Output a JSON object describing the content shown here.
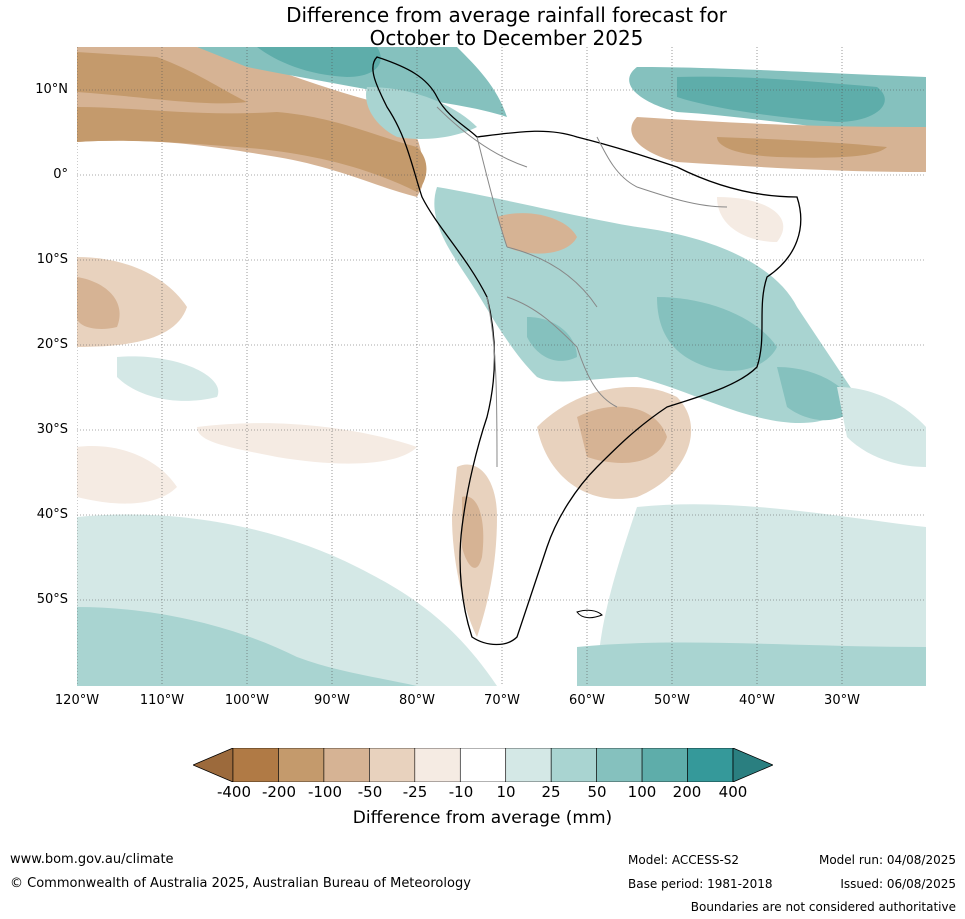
{
  "title": {
    "line1": "Difference from average rainfall forecast for",
    "line2": "October to December 2025"
  },
  "axes": {
    "lat_labels": [
      "10°N",
      "0°",
      "10°S",
      "20°S",
      "30°S",
      "40°S",
      "50°S"
    ],
    "lon_labels": [
      "120°W",
      "110°W",
      "100°W",
      "90°W",
      "80°W",
      "70°W",
      "60°W",
      "50°W",
      "40°W",
      "30°W"
    ]
  },
  "colorbar": {
    "title": "Difference from average (mm)",
    "ticks": [
      "-400",
      "-200",
      "-100",
      "-50",
      "-25",
      "-10",
      "10",
      "25",
      "50",
      "100",
      "200",
      "400"
    ],
    "colors": [
      "#9c6a3c",
      "#b07a45",
      "#c49a6c",
      "#d6b394",
      "#e8d2be",
      "#f5ebe3",
      "#ffffff",
      "#d4e8e6",
      "#a9d4d1",
      "#85c1be",
      "#5eadaa",
      "#35999a",
      "#2a7f80"
    ]
  },
  "footer": {
    "website": "www.bom.gov.au/climate",
    "copyright": "© Commonwealth of Australia 2025, Australian Bureau of Meteorology",
    "model": "Model: ACCESS-S2",
    "model_run": "Model run: 04/08/2025",
    "base_period": "Base period: 1981-2018",
    "issued": "Issued: 06/08/2025",
    "disclaimer": "Boundaries are not considered authoritative"
  }
}
